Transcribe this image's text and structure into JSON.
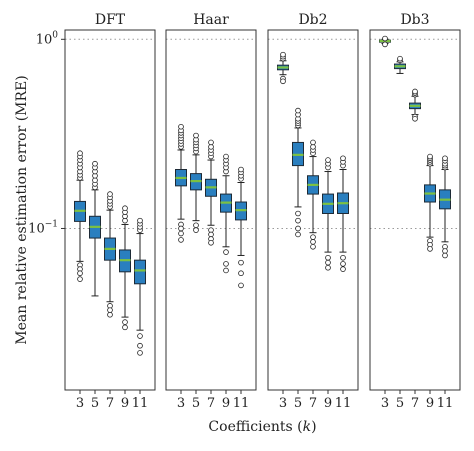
{
  "chart_data": {
    "type": "box",
    "ylabel": "Mean relative estimation error (MRE)",
    "xlabel_prefix": "Coefficients (",
    "xlabel_var": "k",
    "xlabel_suffix": ")",
    "y_scale": "log",
    "ylim": [
      0.014,
      1.12
    ],
    "y_ticks": [
      {
        "value": 1.0,
        "label": "10",
        "exponent": "0"
      },
      {
        "value": 0.1,
        "label": "10",
        "exponent": "−1"
      }
    ],
    "reference_lines": [
      1.0,
      0.1
    ],
    "categories": [
      "3",
      "5",
      "7",
      "9",
      "11"
    ],
    "colors": {
      "box": "#2a7fbf",
      "median": "#7cc142",
      "axis": "#333333",
      "reference": "#9a9a9a"
    },
    "panels": [
      {
        "title": "DFT",
        "boxes": [
          {
            "k": "3",
            "q1": 0.109,
            "median": 0.124,
            "q3": 0.139,
            "whislo": 0.067,
            "whishi": 0.18,
            "outliers_high": [
              0.185,
              0.192,
              0.2,
              0.21,
              0.22,
              0.23,
              0.24,
              0.25
            ],
            "outliers_low": [
              0.064,
              0.061,
              0.058,
              0.054
            ]
          },
          {
            "k": "5",
            "q1": 0.089,
            "median": 0.102,
            "q3": 0.116,
            "whislo": 0.044,
            "whishi": 0.16,
            "outliers_high": [
              0.165,
              0.172,
              0.18,
              0.19,
              0.2,
              0.21,
              0.22
            ],
            "outliers_low": []
          },
          {
            "k": "7",
            "q1": 0.068,
            "median": 0.078,
            "q3": 0.089,
            "whislo": 0.041,
            "whishi": 0.125,
            "outliers_high": [
              0.13,
              0.135,
              0.14,
              0.146,
              0.152
            ],
            "outliers_low": [
              0.039,
              0.037,
              0.035
            ]
          },
          {
            "k": "9",
            "q1": 0.059,
            "median": 0.068,
            "q3": 0.077,
            "whislo": 0.034,
            "whishi": 0.105,
            "outliers_high": [
              0.11,
              0.116,
              0.122,
              0.128
            ],
            "outliers_low": [
              0.032,
              0.03
            ]
          },
          {
            "k": "11",
            "q1": 0.051,
            "median": 0.06,
            "q3": 0.068,
            "whislo": 0.029,
            "whishi": 0.094,
            "outliers_high": [
              0.098,
              0.102,
              0.106,
              0.11
            ],
            "outliers_low": [
              0.027,
              0.024,
              0.022
            ]
          }
        ]
      },
      {
        "title": "Haar",
        "boxes": [
          {
            "k": "3",
            "q1": 0.168,
            "median": 0.185,
            "q3": 0.205,
            "whislo": 0.112,
            "whishi": 0.26,
            "outliers_high": [
              0.27,
              0.28,
              0.29,
              0.3,
              0.31,
              0.32,
              0.33,
              0.345
            ],
            "outliers_low": [
              0.105,
              0.1,
              0.094,
              0.087
            ]
          },
          {
            "k": "5",
            "q1": 0.16,
            "median": 0.178,
            "q3": 0.195,
            "whislo": 0.11,
            "whishi": 0.245,
            "outliers_high": [
              0.255,
              0.265,
              0.275,
              0.285,
              0.295,
              0.31
            ],
            "outliers_low": [
              0.104,
              0.098
            ]
          },
          {
            "k": "7",
            "q1": 0.148,
            "median": 0.165,
            "q3": 0.182,
            "whislo": 0.104,
            "whishi": 0.23,
            "outliers_high": [
              0.24,
              0.25,
              0.26,
              0.27,
              0.285
            ],
            "outliers_low": [
              0.098,
              0.093,
              0.088,
              0.084
            ]
          },
          {
            "k": "9",
            "q1": 0.122,
            "median": 0.137,
            "q3": 0.152,
            "whislo": 0.08,
            "whishi": 0.19,
            "outliers_high": [
              0.2,
              0.21,
              0.22,
              0.23,
              0.24
            ],
            "outliers_low": [
              0.075,
              0.065,
              0.06
            ]
          },
          {
            "k": "11",
            "q1": 0.111,
            "median": 0.125,
            "q3": 0.138,
            "whislo": 0.072,
            "whishi": 0.175,
            "outliers_high": [
              0.183,
              0.19,
              0.198,
              0.205
            ],
            "outliers_low": [
              0.066,
              0.058,
              0.05
            ]
          }
        ]
      },
      {
        "title": "Db2",
        "boxes": [
          {
            "k": "3",
            "q1": 0.69,
            "median": 0.71,
            "q3": 0.73,
            "whislo": 0.65,
            "whishi": 0.77,
            "outliers_high": [
              0.79,
              0.81,
              0.83
            ],
            "outliers_low": [
              0.62,
              0.6
            ]
          },
          {
            "k": "5",
            "q1": 0.215,
            "median": 0.245,
            "q3": 0.285,
            "whislo": 0.13,
            "whishi": 0.34,
            "outliers_high": [
              0.35,
              0.36,
              0.37,
              0.38,
              0.4,
              0.42
            ],
            "outliers_low": [
              0.12,
              0.11,
              0.1,
              0.093
            ]
          },
          {
            "k": "7",
            "q1": 0.152,
            "median": 0.17,
            "q3": 0.19,
            "whislo": 0.095,
            "whishi": 0.24,
            "outliers_high": [
              0.25,
              0.26,
              0.27,
              0.285
            ],
            "outliers_low": [
              0.09,
              0.085,
              0.08
            ]
          },
          {
            "k": "9",
            "q1": 0.12,
            "median": 0.135,
            "q3": 0.152,
            "whislo": 0.075,
            "whishi": 0.2,
            "outliers_high": [
              0.21,
              0.22,
              0.23
            ],
            "outliers_low": [
              0.07,
              0.066,
              0.062
            ]
          },
          {
            "k": "11",
            "q1": 0.12,
            "median": 0.136,
            "q3": 0.154,
            "whislo": 0.075,
            "whishi": 0.205,
            "outliers_high": [
              0.215,
              0.225,
              0.235
            ],
            "outliers_low": [
              0.07,
              0.065,
              0.061
            ]
          }
        ]
      },
      {
        "title": "Db3",
        "boxes": [
          {
            "k": "3",
            "q1": 0.97,
            "median": 0.98,
            "q3": 0.99,
            "whislo": 0.95,
            "whishi": 1.0,
            "outliers_high": [
              1.01
            ],
            "outliers_low": [
              0.94
            ]
          },
          {
            "k": "5",
            "q1": 0.7,
            "median": 0.72,
            "q3": 0.74,
            "whislo": 0.66,
            "whishi": 0.76,
            "outliers_high": [
              0.775,
              0.79
            ],
            "outliers_low": []
          },
          {
            "k": "7",
            "q1": 0.43,
            "median": 0.445,
            "q3": 0.46,
            "whislo": 0.4,
            "whishi": 0.5,
            "outliers_high": [
              0.51,
              0.52,
              0.53
            ],
            "outliers_low": [
              0.39,
              0.38
            ]
          },
          {
            "k": "9",
            "q1": 0.138,
            "median": 0.153,
            "q3": 0.17,
            "whislo": 0.09,
            "whishi": 0.215,
            "outliers_high": [
              0.22,
              0.225,
              0.23,
              0.235,
              0.24
            ],
            "outliers_low": [
              0.086,
              0.082,
              0.078
            ]
          },
          {
            "k": "11",
            "q1": 0.127,
            "median": 0.142,
            "q3": 0.16,
            "whislo": 0.085,
            "whishi": 0.205,
            "outliers_high": [
              0.21,
              0.215,
              0.22,
              0.228,
              0.235
            ],
            "outliers_low": [
              0.08,
              0.076,
              0.072
            ]
          }
        ]
      }
    ]
  }
}
